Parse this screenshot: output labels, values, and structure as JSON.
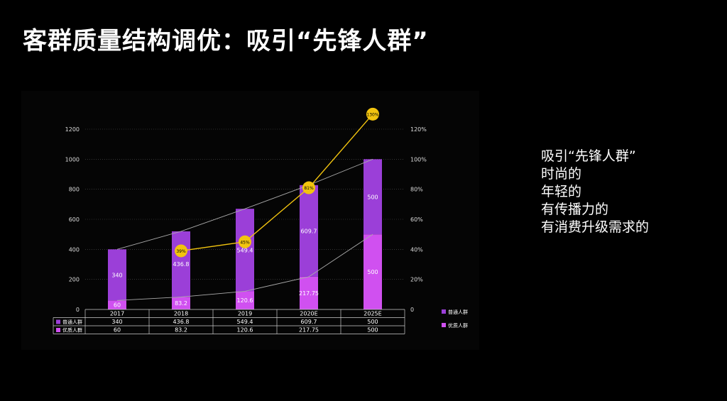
{
  "title": "客群质量结构调优：吸引“先锋人群”",
  "side_points": [
    "吸引“先锋人群”",
    "时尚的",
    "年轻的",
    "有传播力的",
    "有消费升级需求的"
  ],
  "chart_data": {
    "type": "bar",
    "stacked": true,
    "categories": [
      "2017",
      "2018",
      "2019",
      "2020E",
      "2025E"
    ],
    "series": [
      {
        "name": "普通人群",
        "values": [
          340,
          436.8,
          549.4,
          609.7,
          500
        ],
        "labels": [
          "340",
          "436.8",
          "549.4",
          "609.7",
          "500"
        ],
        "color": "#9b3fd8"
      },
      {
        "name": "优质人群",
        "values": [
          60,
          83.2,
          120.6,
          217.75,
          500
        ],
        "labels": [
          "60",
          "83.2",
          "120.6",
          "217.75",
          "500"
        ],
        "color": "#d050f0"
      }
    ],
    "line": {
      "values": [
        39,
        45,
        81,
        130
      ],
      "x_index": [
        1,
        2,
        3,
        4
      ],
      "labels": [
        "39%",
        "45%",
        "81%",
        "130%"
      ],
      "color": "#f2c40f"
    },
    "ylim": [
      0,
      1200
    ],
    "yticks": [
      "0",
      "200",
      "400",
      "600",
      "800",
      "1000",
      "1200"
    ],
    "y2lim": [
      0,
      120
    ],
    "y2ticks": [
      "0",
      "20%",
      "40%",
      "60%",
      "80%",
      "100%",
      "120%"
    ],
    "grid": true,
    "legend": "right"
  }
}
